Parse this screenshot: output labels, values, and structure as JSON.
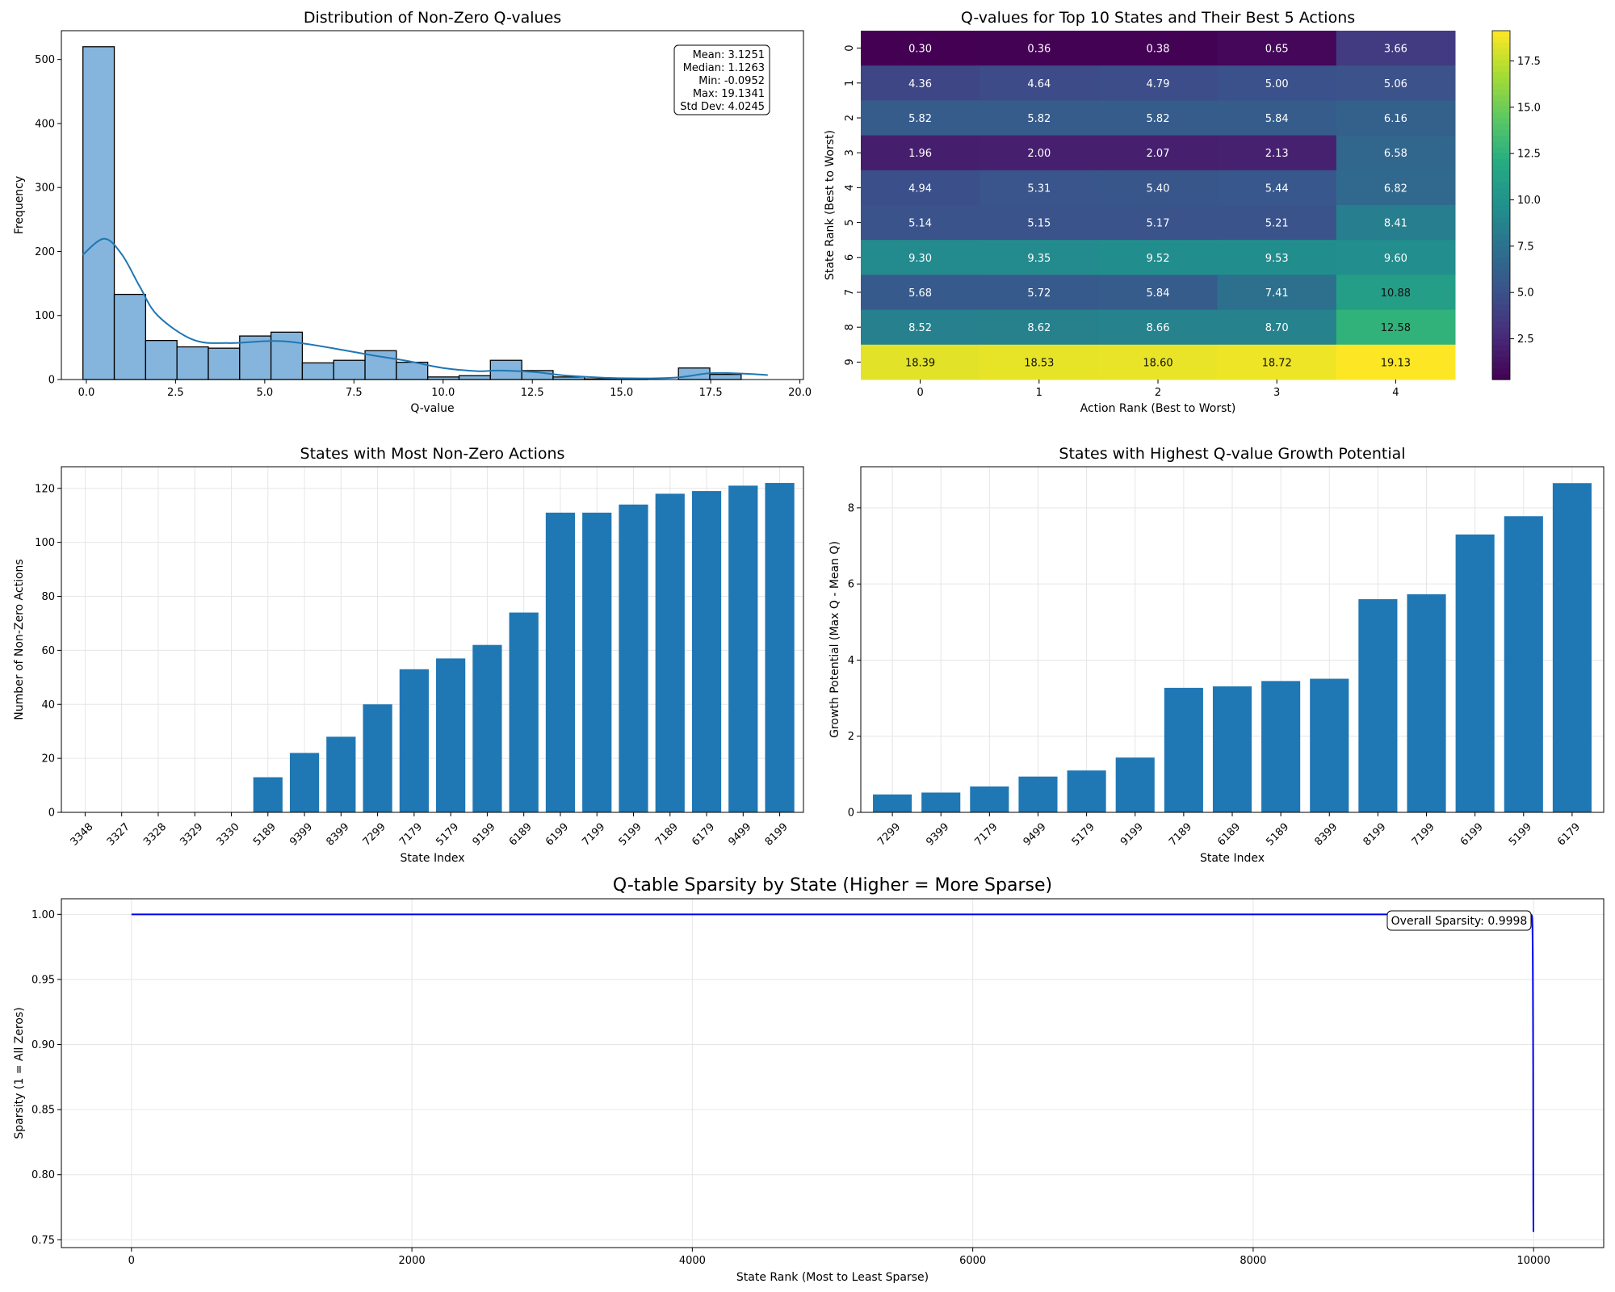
{
  "chart_data": [
    {
      "type": "bar",
      "subtype": "histogram",
      "title": "Distribution of Non-Zero Q-values",
      "xlabel": "Q-value",
      "ylabel": "Frequency",
      "xlim": [
        -0.7,
        20.1
      ],
      "ylim": [
        0,
        545
      ],
      "xticks": [
        0.0,
        2.5,
        5.0,
        7.5,
        10.0,
        12.5,
        15.0,
        17.5,
        20.0
      ],
      "xtick_labels": [
        "0.0",
        "2.5",
        "5.0",
        "7.5",
        "10.0",
        "12.5",
        "15.0",
        "17.5",
        "20.0"
      ],
      "yticks": [
        0,
        100,
        200,
        300,
        400,
        500
      ],
      "bin_start": -0.0952,
      "bin_width": 0.8785,
      "counts": [
        520,
        133,
        61,
        51,
        49,
        68,
        74,
        26,
        30,
        45,
        27,
        4,
        6,
        30,
        14,
        4,
        1,
        1,
        0,
        18,
        8
      ],
      "kde": {
        "x": [
          -0.1,
          0.5,
          1.0,
          1.5,
          2.0,
          3.0,
          4.0,
          5.0,
          5.5,
          6.0,
          7.0,
          8.0,
          9.0,
          10.0,
          11.0,
          11.5,
          12.5,
          13.5,
          15.0,
          16.5,
          17.5,
          18.5,
          19.1
        ],
        "y": [
          195,
          220,
          195,
          145,
          100,
          62,
          57,
          60,
          60,
          57,
          48,
          38,
          29,
          18,
          13,
          14,
          12,
          6,
          2,
          3,
          10,
          9,
          7
        ]
      },
      "grid": false,
      "stats_box": {
        "lines": [
          "Mean: 3.1251",
          "Median: 1.1263",
          "Min: -0.0952",
          "Max: 19.1341",
          "Std Dev: 4.0245"
        ],
        "position": "top-right"
      },
      "colors": {
        "bar": "#85b5dc",
        "edge": "#000000",
        "kde": "#1f77b4"
      }
    },
    {
      "type": "heatmap",
      "title": "Q-values for Top 10 States and Their Best 5 Actions",
      "xlabel": "Action Rank (Best to Worst)",
      "ylabel": "State Rank (Best to Worst)",
      "x_labels": [
        "0",
        "1",
        "2",
        "3",
        "4"
      ],
      "y_labels": [
        "0",
        "1",
        "2",
        "3",
        "4",
        "5",
        "6",
        "7",
        "8",
        "9"
      ],
      "values": [
        [
          0.3,
          0.36,
          0.38,
          0.65,
          3.66
        ],
        [
          4.36,
          4.64,
          4.79,
          5.0,
          5.06
        ],
        [
          5.82,
          5.82,
          5.82,
          5.84,
          6.16
        ],
        [
          1.96,
          2.0,
          2.07,
          2.13,
          6.58
        ],
        [
          4.94,
          5.31,
          5.4,
          5.44,
          6.82
        ],
        [
          5.14,
          5.15,
          5.17,
          5.21,
          8.41
        ],
        [
          9.3,
          9.35,
          9.52,
          9.53,
          9.6
        ],
        [
          5.68,
          5.72,
          5.84,
          7.41,
          10.88
        ],
        [
          8.52,
          8.62,
          8.66,
          8.7,
          12.58
        ],
        [
          18.39,
          18.53,
          18.6,
          18.72,
          19.13
        ]
      ],
      "colormap": "viridis",
      "vmin": 0.3,
      "vmax": 19.13,
      "colorbar_ticks": [
        2.5,
        5.0,
        7.5,
        10.0,
        12.5,
        15.0,
        17.5
      ],
      "colorbar_tick_labels": [
        "2.5",
        "5.0",
        "7.5",
        "10.0",
        "12.5",
        "15.0",
        "17.5"
      ]
    },
    {
      "type": "bar",
      "title": "States with Most Non-Zero Actions",
      "xlabel": "State Index",
      "ylabel": "Number of Non-Zero Actions",
      "categories": [
        "3348",
        "3327",
        "3328",
        "3329",
        "3330",
        "5189",
        "9399",
        "8399",
        "7299",
        "7179",
        "5179",
        "9199",
        "6189",
        "6199",
        "7199",
        "5199",
        "7189",
        "6179",
        "9499",
        "8199"
      ],
      "values": [
        0,
        0,
        0,
        0,
        0,
        13,
        22,
        28,
        40,
        53,
        57,
        62,
        74,
        111,
        111,
        114,
        118,
        119,
        121,
        122
      ],
      "ylim": [
        0,
        128
      ],
      "yticks": [
        0,
        20,
        40,
        60,
        80,
        100,
        120
      ],
      "grid": true,
      "colors": {
        "bar": "#1f77b4"
      }
    },
    {
      "type": "bar",
      "title": "States with Highest Q-value Growth Potential",
      "xlabel": "State Index",
      "ylabel": "Growth Potential (Max Q - Mean Q)",
      "categories": [
        "7299",
        "9399",
        "7179",
        "9499",
        "5179",
        "9199",
        "7189",
        "6189",
        "5189",
        "8399",
        "8199",
        "7199",
        "6199",
        "5199",
        "6179"
      ],
      "values": [
        0.47,
        0.52,
        0.68,
        0.94,
        1.1,
        1.44,
        3.27,
        3.31,
        3.45,
        3.51,
        5.6,
        5.73,
        7.3,
        7.78,
        8.65
      ],
      "ylim": [
        0,
        9.08
      ],
      "yticks": [
        0,
        2,
        4,
        6,
        8
      ],
      "grid": true,
      "colors": {
        "bar": "#1f77b4"
      }
    },
    {
      "type": "line",
      "title": "Q-table Sparsity by State (Higher = More Sparse)",
      "xlabel": "State Rank (Most to Least Sparse)",
      "ylabel": "Sparsity (1 = All Zeros)",
      "xlim": [
        -500,
        10500
      ],
      "ylim": [
        0.744,
        1.012
      ],
      "xticks": [
        0,
        2000,
        4000,
        6000,
        8000,
        10000
      ],
      "yticks": [
        0.75,
        0.8,
        0.85,
        0.9,
        0.95,
        1.0
      ],
      "ytick_labels": [
        "0.75",
        "0.80",
        "0.85",
        "0.90",
        "0.95",
        "1.00"
      ],
      "series": [
        {
          "x": [
            0,
            9980,
            9985,
            9988,
            9990,
            9992,
            9994,
            9995,
            9996,
            9997,
            9998,
            9999
          ],
          "y": [
            1.0,
            1.0,
            0.9995,
            0.999,
            0.997,
            0.99,
            0.97,
            0.95,
            0.92,
            0.88,
            0.78,
            0.756
          ]
        }
      ],
      "annotation": "Overall Sparsity: 0.9998",
      "annotation_position": "top-right",
      "grid": true,
      "colors": {
        "line": "#0000ee"
      }
    }
  ]
}
